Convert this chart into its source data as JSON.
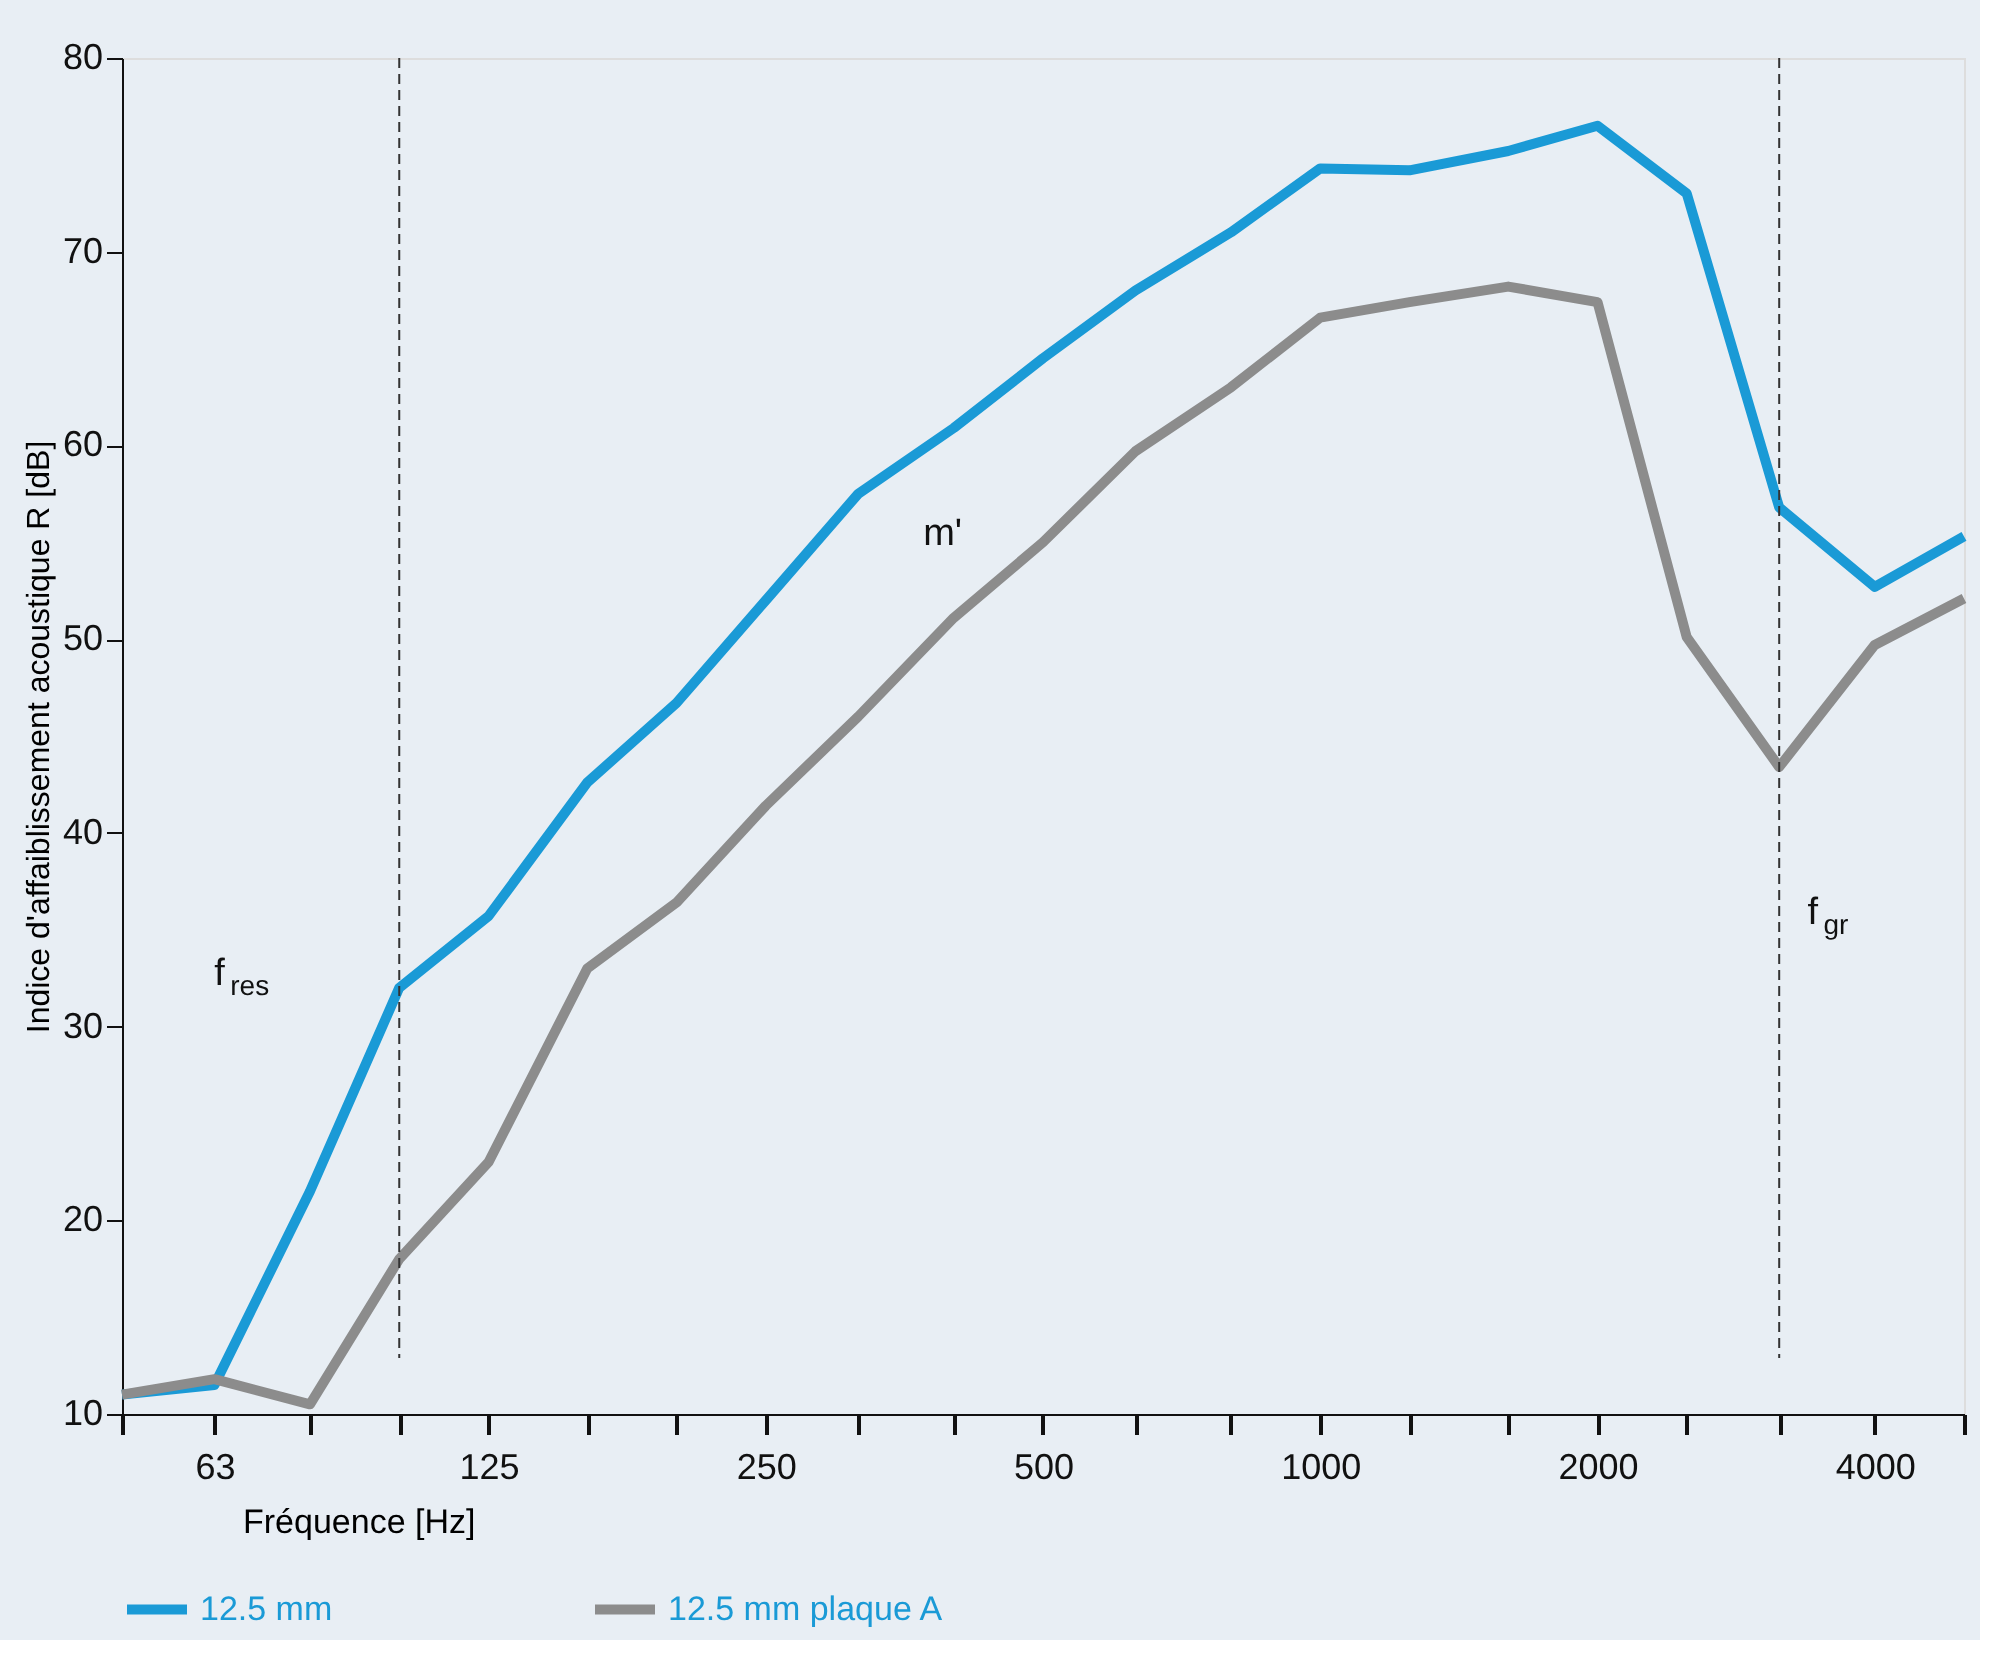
{
  "chart_data": {
    "type": "line",
    "xlabel": "Fréquence [Hz]",
    "ylabel": "Indice d'affaiblissement acoustique R   [dB]",
    "x": [
      50,
      63,
      80,
      100,
      125,
      160,
      200,
      250,
      315,
      400,
      500,
      630,
      800,
      1000,
      1250,
      1600,
      2000,
      2500,
      3150,
      4000,
      5000
    ],
    "series": [
      {
        "name": "12.5 mm",
        "color": "#1a9ad6",
        "values": [
          11.0,
          11.5,
          21.5,
          32.0,
          35.7,
          42.6,
          46.7,
          52.0,
          57.5,
          60.9,
          64.5,
          68.0,
          71.0,
          74.3,
          74.2,
          75.2,
          76.5,
          73.0,
          56.8,
          52.7,
          55.3
        ]
      },
      {
        "name": "12.5 mm plaque A",
        "color": "#8c8c8c",
        "values": [
          11.0,
          11.8,
          10.5,
          18.0,
          23.0,
          33.0,
          36.4,
          41.4,
          46.0,
          51.1,
          55.0,
          59.7,
          63.0,
          66.6,
          67.4,
          68.2,
          67.4,
          50.1,
          43.4,
          49.7,
          52.1
        ]
      }
    ],
    "log": "x",
    "xlim": [
      50,
      5000
    ],
    "xticks": [
      {
        "value": 50,
        "label": null
      },
      63,
      {
        "value": 80,
        "label": null
      },
      {
        "value": 100,
        "label": null
      },
      125,
      {
        "value": 160,
        "label": null
      },
      {
        "value": 200,
        "label": null
      },
      250,
      {
        "value": 315,
        "label": null
      },
      {
        "value": 400,
        "label": null
      },
      500,
      {
        "value": 630,
        "label": null
      },
      {
        "value": 800,
        "label": null
      },
      1000,
      {
        "value": 1250,
        "label": null
      },
      {
        "value": 1600,
        "label": null
      },
      2000,
      {
        "value": 2500,
        "label": null
      },
      {
        "value": 3150,
        "label": null
      },
      4000,
      {
        "value": 5000,
        "label": null
      }
    ],
    "ylim": [
      10,
      80
    ],
    "yticks": [
      10,
      20,
      30,
      40,
      50,
      60,
      70,
      80
    ],
    "ref_lines": [
      {
        "axis": "x",
        "value": 100,
        "line_style": "dashed",
        "color": "#333333"
      },
      {
        "axis": "x",
        "value": 3150,
        "line_style": "dashed",
        "color": "#333333"
      }
    ],
    "annotations": [
      "m'",
      "f$_{res}$",
      "f$_{gr}$"
    ],
    "grid": false,
    "legend": "bottom",
    "marker": "none",
    "line_style": "solid"
  }
}
